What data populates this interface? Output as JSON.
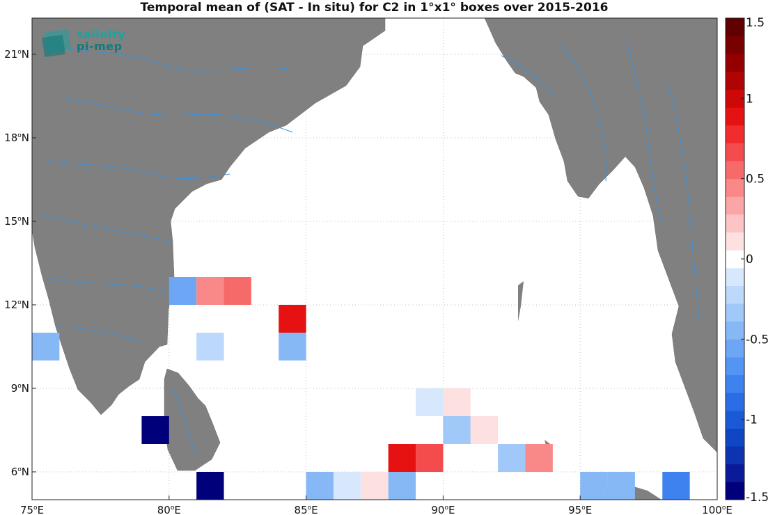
{
  "title": "Temporal mean of (SAT - In situ) for C2 in 1°x1° boxes over 2015-2016",
  "logo": {
    "line1": "salinity",
    "line2": "pi-mep"
  },
  "map": {
    "lon_range": [
      75,
      100
    ],
    "lat_range": [
      5,
      22.3
    ],
    "x_ticks": [
      {
        "value": 75,
        "label": "75°E"
      },
      {
        "value": 80,
        "label": "80°E"
      },
      {
        "value": 85,
        "label": "85°E"
      },
      {
        "value": 90,
        "label": "90°E"
      },
      {
        "value": 95,
        "label": "95°E"
      },
      {
        "value": 100,
        "label": "100°E"
      }
    ],
    "y_ticks": [
      {
        "value": 6,
        "label": "6°N"
      },
      {
        "value": 9,
        "label": "9°N"
      },
      {
        "value": 12,
        "label": "12°N"
      },
      {
        "value": 15,
        "label": "15°N"
      },
      {
        "value": 18,
        "label": "18°N"
      },
      {
        "value": 21,
        "label": "21°N"
      }
    ],
    "grid": true,
    "land_color": "#808080",
    "river_color": "#3a8fd9"
  },
  "colorbar": {
    "min": -1.5,
    "max": 1.5,
    "ticks": [
      {
        "value": 1.5,
        "label": "1.5"
      },
      {
        "value": 1,
        "label": "1"
      },
      {
        "value": 0.5,
        "label": "0.5"
      },
      {
        "value": 0,
        "label": "0"
      },
      {
        "value": -0.5,
        "label": "-0.5"
      },
      {
        "value": -1,
        "label": "-1"
      },
      {
        "value": -1.5,
        "label": "-1.5"
      }
    ]
  },
  "chart_data": {
    "type": "heatmap",
    "title": "Temporal mean of (SAT - In situ) for C2 in 1°x1° boxes over 2015-2016",
    "xlabel": "",
    "ylabel": "",
    "cell_size_deg": 1,
    "cells": [
      {
        "lon": 75,
        "lat": 10,
        "value": -0.45
      },
      {
        "lon": 80,
        "lat": 12,
        "value": -0.55
      },
      {
        "lon": 81,
        "lat": 12,
        "value": 0.4
      },
      {
        "lon": 82,
        "lat": 12,
        "value": 0.55
      },
      {
        "lon": 84,
        "lat": 11,
        "value": 0.85
      },
      {
        "lon": 84,
        "lat": 10,
        "value": -0.45
      },
      {
        "lon": 81,
        "lat": 10,
        "value": -0.25
      },
      {
        "lon": 79,
        "lat": 7,
        "value": -1.5
      },
      {
        "lon": 81,
        "lat": 5,
        "value": -1.5
      },
      {
        "lon": 85,
        "lat": 5,
        "value": -0.45
      },
      {
        "lon": 86,
        "lat": 5,
        "value": -0.15
      },
      {
        "lon": 87,
        "lat": 5,
        "value": 0.15
      },
      {
        "lon": 88,
        "lat": 5,
        "value": -0.5
      },
      {
        "lon": 88,
        "lat": 6,
        "value": 0.85
      },
      {
        "lon": 89,
        "lat": 6,
        "value": 0.7
      },
      {
        "lon": 89,
        "lat": 8,
        "value": -0.1
      },
      {
        "lon": 90,
        "lat": 8,
        "value": 0.15
      },
      {
        "lon": 90,
        "lat": 7,
        "value": -0.35
      },
      {
        "lon": 91,
        "lat": 7,
        "value": 0.1
      },
      {
        "lon": 92,
        "lat": 6,
        "value": -0.35
      },
      {
        "lon": 93,
        "lat": 6,
        "value": 0.45
      },
      {
        "lon": 95,
        "lat": 5,
        "value": -0.45
      },
      {
        "lon": 96,
        "lat": 5,
        "value": -0.45
      },
      {
        "lon": 98,
        "lat": 5,
        "value": -0.75
      }
    ]
  }
}
